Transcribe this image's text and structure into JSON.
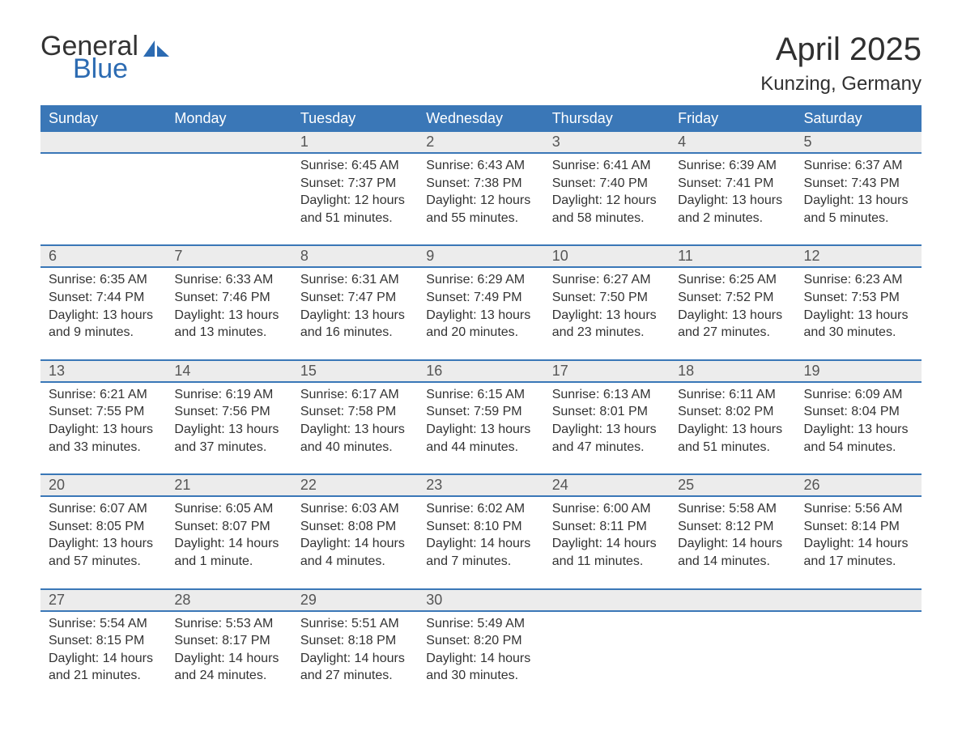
{
  "brand": {
    "word1": "General",
    "word2": "Blue",
    "text_color": "#333333",
    "accent_color": "#2c6bb2",
    "logo_fill": "#2c6bb2"
  },
  "header": {
    "title": "April 2025",
    "subtitle": "Kunzing, Germany",
    "title_fontsize": 40,
    "subtitle_fontsize": 24,
    "title_color": "#303030"
  },
  "calendar": {
    "day_header_bg": "#3a77b7",
    "day_header_text_color": "#ffffff",
    "daynum_bg": "#ececec",
    "daynum_text_color": "#555555",
    "cell_border_color": "#3a77b7",
    "info_text_color": "#333333",
    "info_fontsize": 16,
    "columns": [
      "Sunday",
      "Monday",
      "Tuesday",
      "Wednesday",
      "Thursday",
      "Friday",
      "Saturday"
    ],
    "labels": {
      "sunrise": "Sunrise:",
      "sunset": "Sunset:",
      "daylight": "Daylight:"
    },
    "leading_blanks": 2,
    "days": [
      {
        "n": 1,
        "sunrise": "6:45 AM",
        "sunset": "7:37 PM",
        "daylight": "12 hours and 51 minutes."
      },
      {
        "n": 2,
        "sunrise": "6:43 AM",
        "sunset": "7:38 PM",
        "daylight": "12 hours and 55 minutes."
      },
      {
        "n": 3,
        "sunrise": "6:41 AM",
        "sunset": "7:40 PM",
        "daylight": "12 hours and 58 minutes."
      },
      {
        "n": 4,
        "sunrise": "6:39 AM",
        "sunset": "7:41 PM",
        "daylight": "13 hours and 2 minutes."
      },
      {
        "n": 5,
        "sunrise": "6:37 AM",
        "sunset": "7:43 PM",
        "daylight": "13 hours and 5 minutes."
      },
      {
        "n": 6,
        "sunrise": "6:35 AM",
        "sunset": "7:44 PM",
        "daylight": "13 hours and 9 minutes."
      },
      {
        "n": 7,
        "sunrise": "6:33 AM",
        "sunset": "7:46 PM",
        "daylight": "13 hours and 13 minutes."
      },
      {
        "n": 8,
        "sunrise": "6:31 AM",
        "sunset": "7:47 PM",
        "daylight": "13 hours and 16 minutes."
      },
      {
        "n": 9,
        "sunrise": "6:29 AM",
        "sunset": "7:49 PM",
        "daylight": "13 hours and 20 minutes."
      },
      {
        "n": 10,
        "sunrise": "6:27 AM",
        "sunset": "7:50 PM",
        "daylight": "13 hours and 23 minutes."
      },
      {
        "n": 11,
        "sunrise": "6:25 AM",
        "sunset": "7:52 PM",
        "daylight": "13 hours and 27 minutes."
      },
      {
        "n": 12,
        "sunrise": "6:23 AM",
        "sunset": "7:53 PM",
        "daylight": "13 hours and 30 minutes."
      },
      {
        "n": 13,
        "sunrise": "6:21 AM",
        "sunset": "7:55 PM",
        "daylight": "13 hours and 33 minutes."
      },
      {
        "n": 14,
        "sunrise": "6:19 AM",
        "sunset": "7:56 PM",
        "daylight": "13 hours and 37 minutes."
      },
      {
        "n": 15,
        "sunrise": "6:17 AM",
        "sunset": "7:58 PM",
        "daylight": "13 hours and 40 minutes."
      },
      {
        "n": 16,
        "sunrise": "6:15 AM",
        "sunset": "7:59 PM",
        "daylight": "13 hours and 44 minutes."
      },
      {
        "n": 17,
        "sunrise": "6:13 AM",
        "sunset": "8:01 PM",
        "daylight": "13 hours and 47 minutes."
      },
      {
        "n": 18,
        "sunrise": "6:11 AM",
        "sunset": "8:02 PM",
        "daylight": "13 hours and 51 minutes."
      },
      {
        "n": 19,
        "sunrise": "6:09 AM",
        "sunset": "8:04 PM",
        "daylight": "13 hours and 54 minutes."
      },
      {
        "n": 20,
        "sunrise": "6:07 AM",
        "sunset": "8:05 PM",
        "daylight": "13 hours and 57 minutes."
      },
      {
        "n": 21,
        "sunrise": "6:05 AM",
        "sunset": "8:07 PM",
        "daylight": "14 hours and 1 minute."
      },
      {
        "n": 22,
        "sunrise": "6:03 AM",
        "sunset": "8:08 PM",
        "daylight": "14 hours and 4 minutes."
      },
      {
        "n": 23,
        "sunrise": "6:02 AM",
        "sunset": "8:10 PM",
        "daylight": "14 hours and 7 minutes."
      },
      {
        "n": 24,
        "sunrise": "6:00 AM",
        "sunset": "8:11 PM",
        "daylight": "14 hours and 11 minutes."
      },
      {
        "n": 25,
        "sunrise": "5:58 AM",
        "sunset": "8:12 PM",
        "daylight": "14 hours and 14 minutes."
      },
      {
        "n": 26,
        "sunrise": "5:56 AM",
        "sunset": "8:14 PM",
        "daylight": "14 hours and 17 minutes."
      },
      {
        "n": 27,
        "sunrise": "5:54 AM",
        "sunset": "8:15 PM",
        "daylight": "14 hours and 21 minutes."
      },
      {
        "n": 28,
        "sunrise": "5:53 AM",
        "sunset": "8:17 PM",
        "daylight": "14 hours and 24 minutes."
      },
      {
        "n": 29,
        "sunrise": "5:51 AM",
        "sunset": "8:18 PM",
        "daylight": "14 hours and 27 minutes."
      },
      {
        "n": 30,
        "sunrise": "5:49 AM",
        "sunset": "8:20 PM",
        "daylight": "14 hours and 30 minutes."
      }
    ]
  }
}
